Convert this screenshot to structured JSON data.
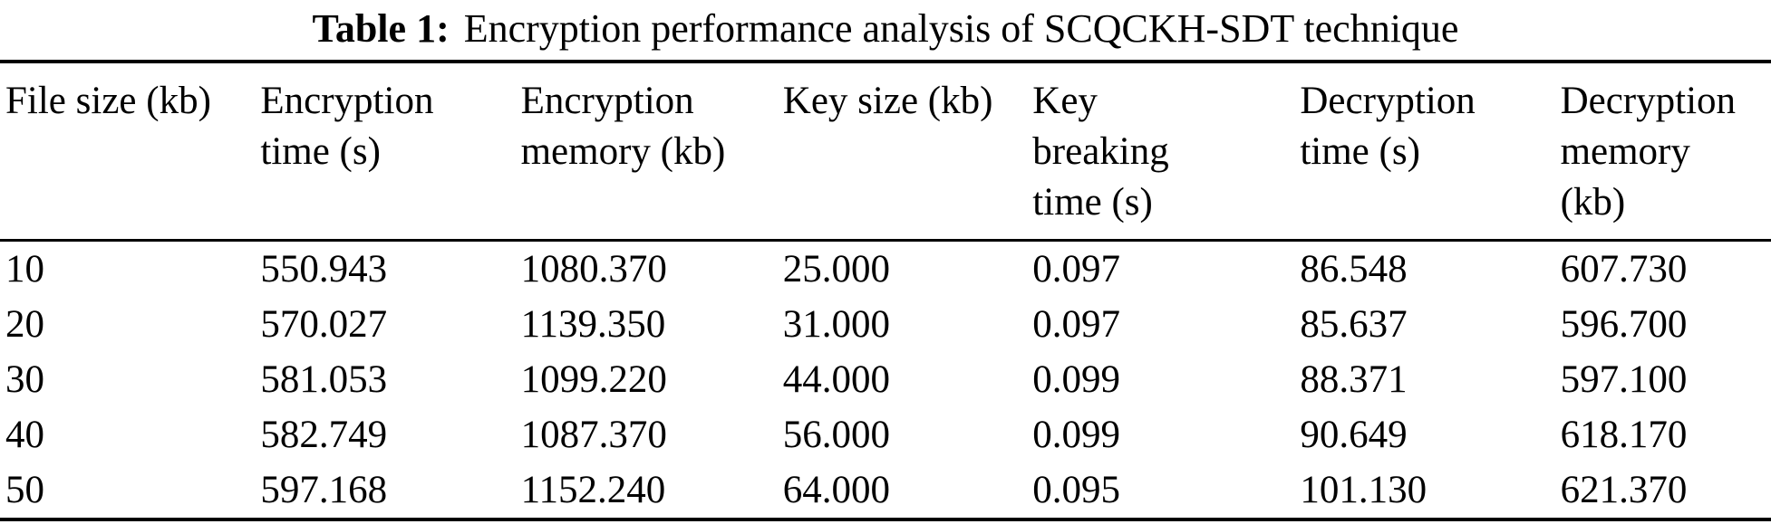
{
  "caption": {
    "label": "Table 1:",
    "text": "Encryption performance analysis of SCQCKH-SDT technique"
  },
  "chart_data": {
    "type": "table",
    "title": "Table 1: Encryption performance analysis of SCQCKH-SDT technique",
    "columns": [
      "File size (kb)",
      "Encryption\ntime (s)",
      "Encryption\nmemory (kb)",
      "Key size (kb)",
      "Key\nbreaking\ntime (s)",
      "Decryption\ntime (s)",
      "Decryption\nmemory\n(kb)"
    ],
    "rows": [
      [
        "10",
        "550.943",
        "1080.370",
        "25.000",
        "0.097",
        "86.548",
        "607.730"
      ],
      [
        "20",
        "570.027",
        "1139.350",
        "31.000",
        "0.097",
        "85.637",
        "596.700"
      ],
      [
        "30",
        "581.053",
        "1099.220",
        "44.000",
        "0.099",
        "88.371",
        "597.100"
      ],
      [
        "40",
        "582.749",
        "1087.370",
        "56.000",
        "0.099",
        "90.649",
        "618.170"
      ],
      [
        "50",
        "597.168",
        "1152.240",
        "64.000",
        "0.095",
        "101.130",
        "621.370"
      ]
    ]
  }
}
